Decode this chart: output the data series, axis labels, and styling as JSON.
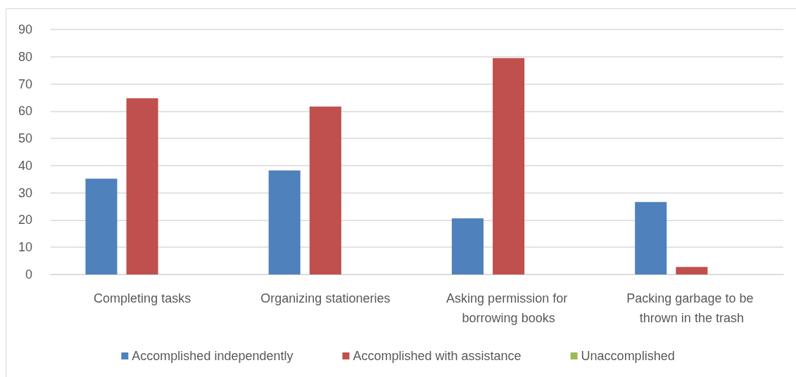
{
  "chart_data": {
    "type": "bar",
    "categories": [
      "Completing tasks",
      "Organizing stationeries",
      "Asking permission for borrowing books",
      "Packing garbage to be thrown in the trash"
    ],
    "series": [
      {
        "name": "Accomplished independently",
        "color": "#4f81bd",
        "values": [
          35.2,
          38.2,
          20.6,
          26.6
        ]
      },
      {
        "name": "Accomplished with assistance",
        "color": "#c0504d",
        "values": [
          64.7,
          61.7,
          79.5,
          2.8
        ]
      },
      {
        "name": "Unaccomplished",
        "color": "#9bbb59",
        "values": [
          0,
          0,
          0,
          0
        ]
      }
    ],
    "ylim": [
      0,
      90
    ],
    "yticks": [
      0,
      10,
      20,
      30,
      40,
      50,
      60,
      70,
      80,
      90
    ],
    "grid": "y",
    "legend": "bottom"
  }
}
